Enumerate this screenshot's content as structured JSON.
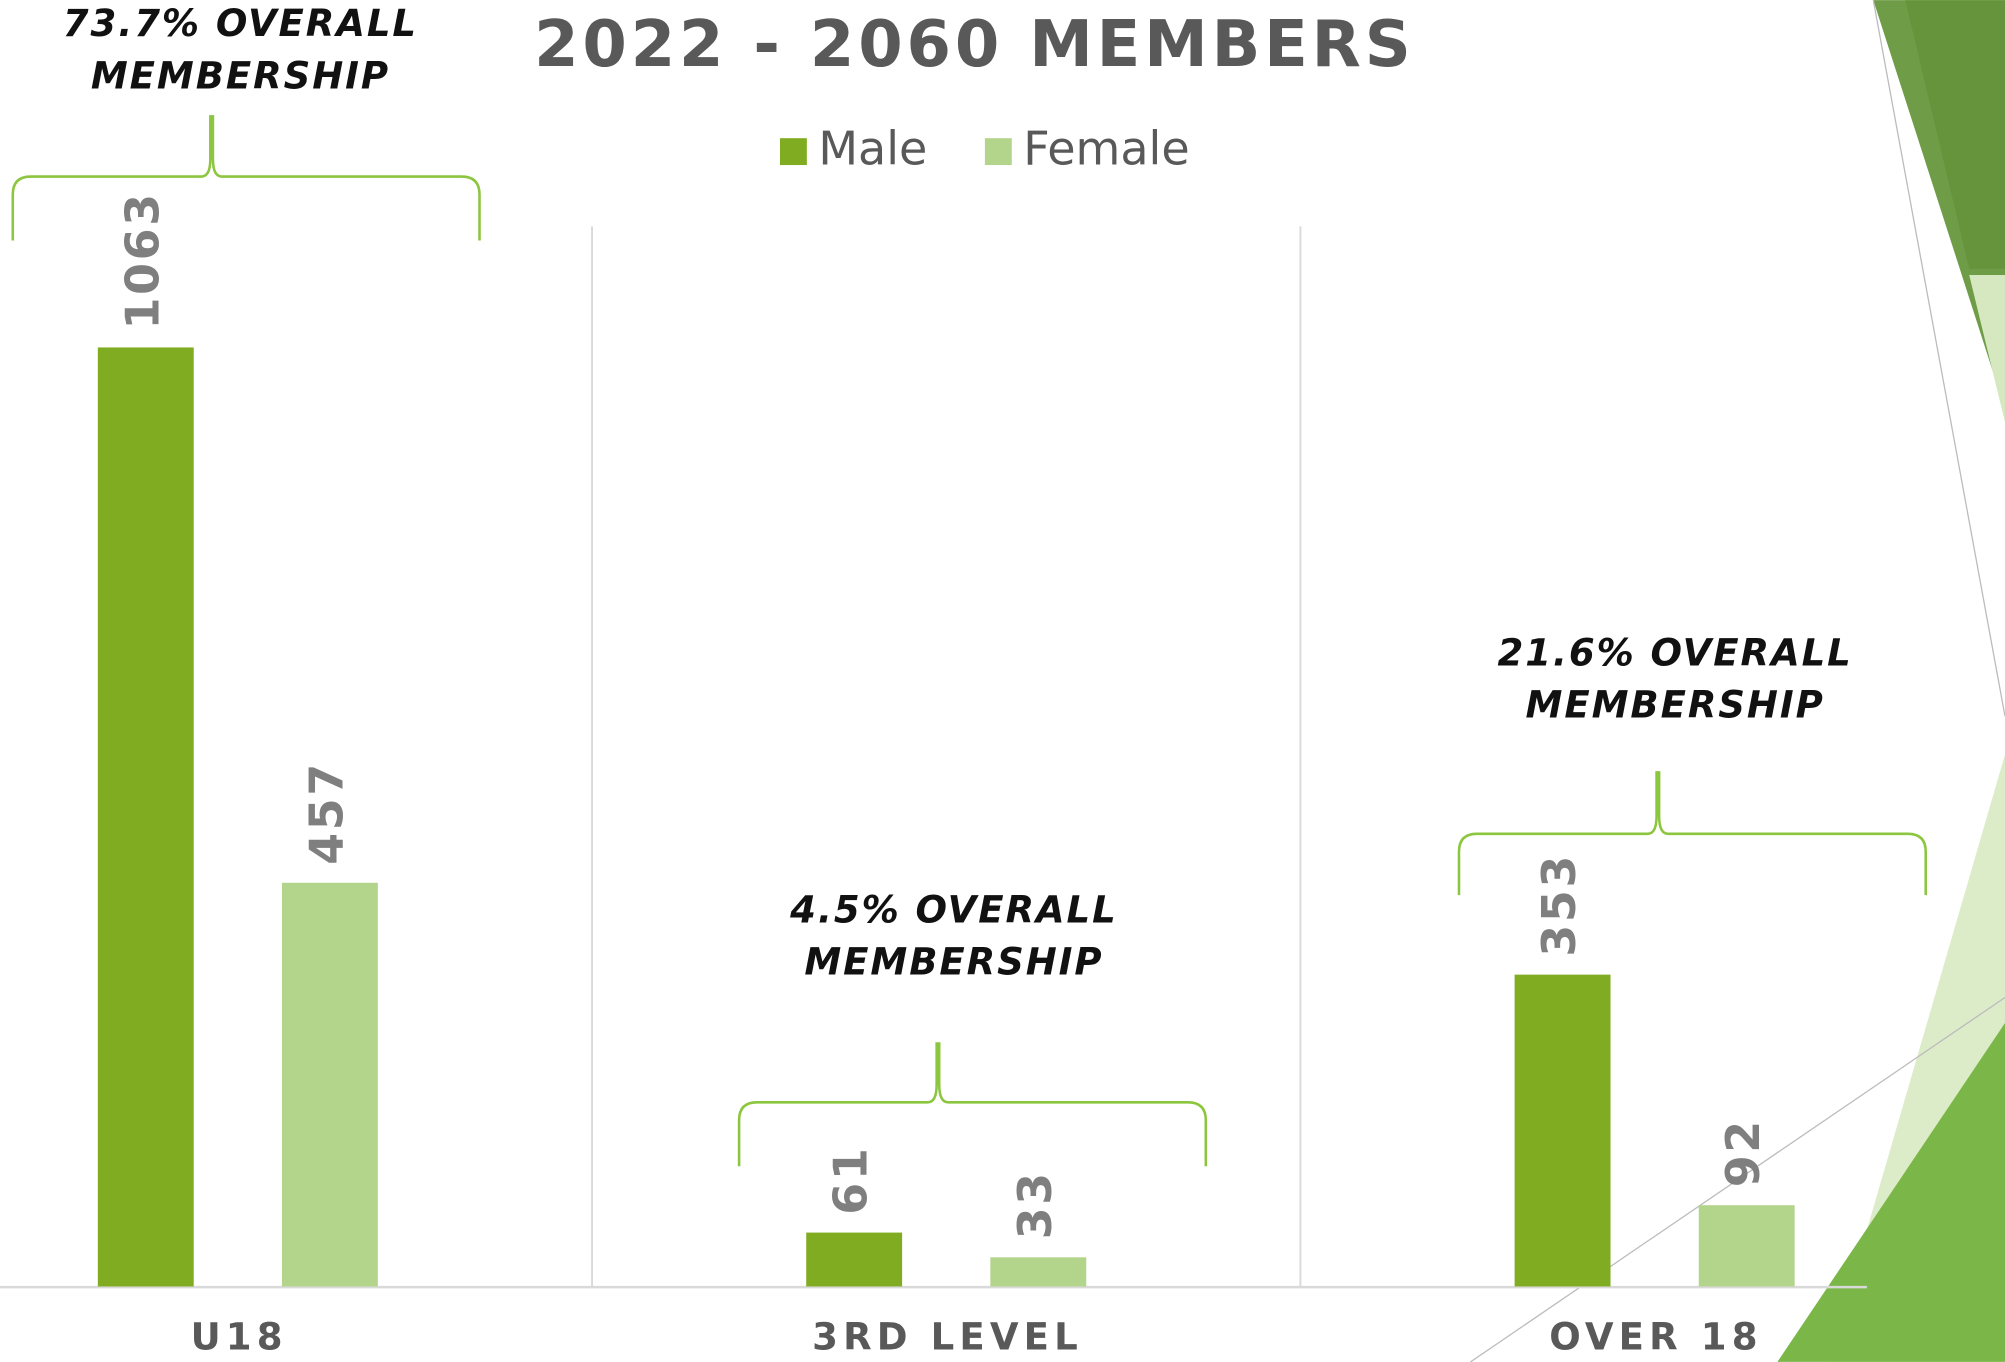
{
  "chart_data": {
    "type": "bar",
    "title": "2022 - 2060 MEMBERS",
    "categories": [
      "U18",
      "3RD LEVEL",
      "OVER 18"
    ],
    "series": [
      {
        "name": "Male",
        "color": "#80ac22",
        "values": [
          1063,
          61,
          353
        ]
      },
      {
        "name": "Female",
        "color": "#b3d48b",
        "values": [
          457,
          33,
          92
        ]
      }
    ],
    "ylim": [
      0,
      1200
    ],
    "legend": "top",
    "annotations": [
      {
        "lines": [
          "73.7% OVERALL",
          "MEMBERSHIP"
        ]
      },
      {
        "lines": [
          "4.5% OVERALL",
          "MEMBERSHIP"
        ]
      },
      {
        "lines": [
          "21.6% OVERALL",
          "MEMBERSHIP"
        ]
      }
    ]
  }
}
